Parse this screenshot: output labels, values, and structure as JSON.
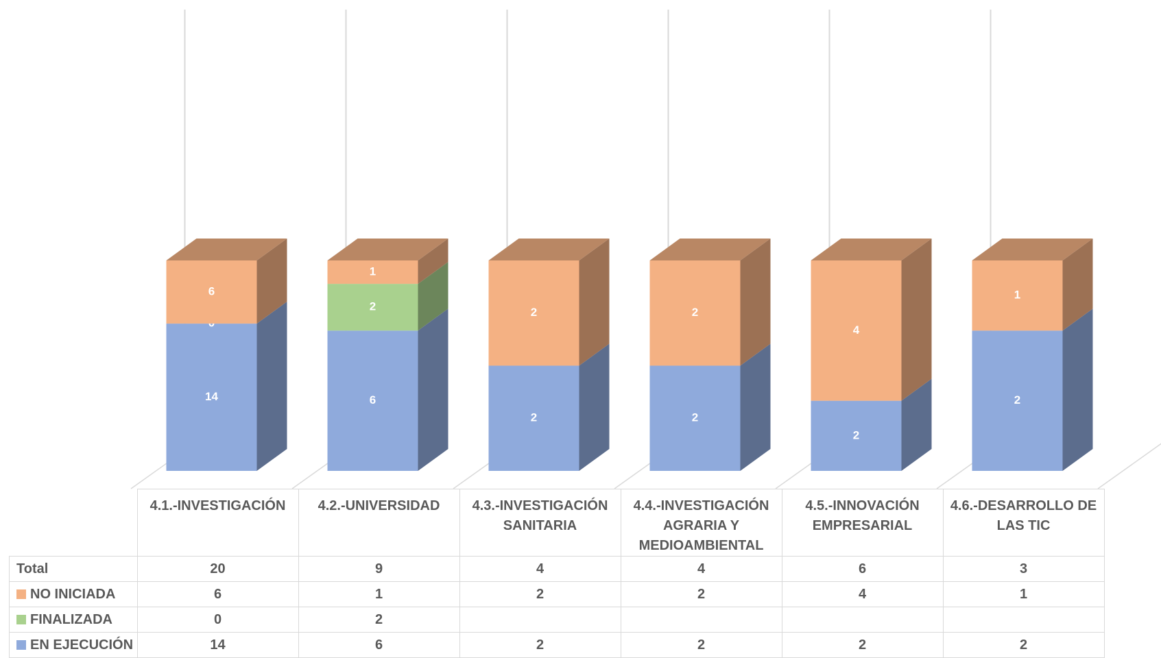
{
  "chart_data": {
    "type": "stacked_percent_bar_3d",
    "categories": [
      "4.1.-INVESTIGACIÓN",
      "4.2.-UNIVERSIDAD",
      "4.3.-INVESTIGACIÓN SANITARIA",
      "4.4.-INVESTIGACIÓN AGRARIA Y MEDIOAMBIENTAL",
      "4.5.-INNOVACIÓN EMPRESARIAL",
      "4.6.-DESARROLLO DE LAS TIC"
    ],
    "series": [
      {
        "name": "Total",
        "values": [
          20,
          9,
          4,
          4,
          6,
          3
        ]
      },
      {
        "name": "NO INICIADA",
        "color": "#f4b183",
        "values": [
          6,
          1,
          2,
          2,
          4,
          1
        ]
      },
      {
        "name": "FINALIZADA",
        "color": "#a9d18e",
        "values": [
          0,
          2,
          null,
          null,
          null,
          null
        ]
      },
      {
        "name": "EN EJECUCIÓN",
        "color": "#8faadc",
        "values": [
          14,
          6,
          2,
          2,
          2,
          2
        ]
      }
    ],
    "data_table": true
  }
}
